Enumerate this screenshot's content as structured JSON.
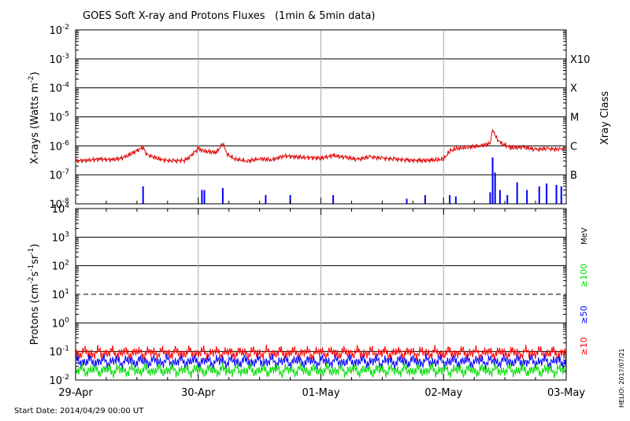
{
  "chart_data": {
    "title": "GOES Soft X-ray and Protons Fluxes   (1min & 5min data)",
    "start_date": "Start Date: 2014/04/29 00:00 UT",
    "credit": "HELIO: 2017/07/21",
    "x_axis": {
      "type": "time",
      "range": [
        "2014-04-29 00:00",
        "2014-05-03 00:00"
      ],
      "tick_labels": [
        "29-Apr",
        "30-Apr",
        "01-May",
        "02-May",
        "03-May"
      ],
      "grid": "vertical lines at day boundaries"
    },
    "xray_panel": {
      "type": "line",
      "y_scale": "log",
      "ylabel": "X-rays (Watts m",
      "ylabel_sup": "-2",
      "ylabel_close": ")",
      "ylim": [
        1e-08,
        0.01
      ],
      "tick_base": "10",
      "tick_exponents": [
        "-8",
        "-7",
        "-6",
        "-5",
        "-4",
        "-3",
        "-2"
      ],
      "right_axis_label": "Xray Class",
      "flare_classes": [
        {
          "label": "B",
          "value": 1e-07
        },
        {
          "label": "C",
          "value": 1e-06
        },
        {
          "label": "M",
          "value": 1e-05
        },
        {
          "label": "X",
          "value": 0.0001
        },
        {
          "label": "X10",
          "value": 0.001
        }
      ],
      "series": [
        {
          "channel": "long (1-8 Å)",
          "color": "#e00000",
          "points": [
            [
              0.0,
              3e-07
            ],
            [
              0.1,
              3.2e-07
            ],
            [
              0.2,
              3.5e-07
            ],
            [
              0.3,
              3.3e-07
            ],
            [
              0.4,
              4e-07
            ],
            [
              0.55,
              9e-07
            ],
            [
              0.58,
              5e-07
            ],
            [
              0.7,
              3.3e-07
            ],
            [
              0.8,
              3e-07
            ],
            [
              0.9,
              3.2e-07
            ],
            [
              1.0,
              8e-07
            ],
            [
              1.05,
              6.5e-07
            ],
            [
              1.15,
              6e-07
            ],
            [
              1.2,
              1.2e-06
            ],
            [
              1.24,
              5e-07
            ],
            [
              1.3,
              3.5e-07
            ],
            [
              1.4,
              3e-07
            ],
            [
              1.5,
              3.6e-07
            ],
            [
              1.6,
              3.3e-07
            ],
            [
              1.7,
              4.5e-07
            ],
            [
              1.85,
              4e-07
            ],
            [
              2.0,
              3.8e-07
            ],
            [
              2.1,
              4.6e-07
            ],
            [
              2.2,
              4e-07
            ],
            [
              2.3,
              3.4e-07
            ],
            [
              2.4,
              4.2e-07
            ],
            [
              2.5,
              3.7e-07
            ],
            [
              2.6,
              3.5e-07
            ],
            [
              2.7,
              3.2e-07
            ],
            [
              2.8,
              3.1e-07
            ],
            [
              2.9,
              3.2e-07
            ],
            [
              2.95,
              3.3e-07
            ],
            [
              3.0,
              3.5e-07
            ],
            [
              3.05,
              6.5e-07
            ],
            [
              3.1,
              8e-07
            ],
            [
              3.2,
              9e-07
            ],
            [
              3.3,
              1e-06
            ],
            [
              3.38,
              1.2e-06
            ],
            [
              3.4,
              3.5e-06
            ],
            [
              3.42,
              2.2e-06
            ],
            [
              3.46,
              1.3e-06
            ],
            [
              3.55,
              8.5e-07
            ],
            [
              3.65,
              9e-07
            ],
            [
              3.75,
              7.5e-07
            ],
            [
              3.85,
              8e-07
            ],
            [
              3.95,
              7.5e-07
            ],
            [
              4.0,
              8e-07
            ]
          ]
        },
        {
          "channel": "short (0.5-4 Å)",
          "color": "#0000ff",
          "points": [
            [
              0.55,
              4e-08
            ],
            [
              1.03,
              3e-08
            ],
            [
              1.05,
              3e-08
            ],
            [
              1.2,
              3.5e-08
            ],
            [
              1.55,
              2e-08
            ],
            [
              1.75,
              2e-08
            ],
            [
              2.1,
              2e-08
            ],
            [
              2.7,
              1.5e-08
            ],
            [
              2.85,
              2e-08
            ],
            [
              3.05,
              2e-08
            ],
            [
              3.1,
              1.8e-08
            ],
            [
              3.38,
              2.5e-08
            ],
            [
              3.4,
              4e-07
            ],
            [
              3.42,
              1.2e-07
            ],
            [
              3.46,
              3e-08
            ],
            [
              3.52,
              2e-08
            ],
            [
              3.6,
              5.5e-08
            ],
            [
              3.68,
              3e-08
            ],
            [
              3.78,
              4e-08
            ],
            [
              3.84,
              5e-08
            ],
            [
              3.92,
              4.5e-08
            ],
            [
              3.96,
              4e-08
            ]
          ]
        }
      ]
    },
    "proton_panel": {
      "type": "line",
      "y_scale": "log",
      "ylabel": "Protons (cm",
      "ylabel_sup": "-2",
      "ylabel_mid": "s",
      "ylabel_sup2": "-1",
      "ylabel_mid2": "sr",
      "ylabel_sup3": "-1",
      "ylabel_close": ")",
      "ylim": [
        0.01,
        10000
      ],
      "tick_labels": [
        {
          "base": "10",
          "exp": "-2"
        },
        {
          "base": "10",
          "exp": "-1"
        },
        {
          "base": "10",
          "exp": "0"
        },
        {
          "base": "10",
          "exp": "1"
        },
        {
          "base": "10",
          "exp": "2"
        },
        {
          "base": "10",
          "exp": "3"
        },
        {
          "base": "10",
          "exp": "4"
        }
      ],
      "threshold_line": {
        "value": 10,
        "style": "dashed"
      },
      "unit_label": "MeV",
      "series": [
        {
          "name": "≥10",
          "color": "#ff0000",
          "mean": 0.09
        },
        {
          "name": "≥50",
          "color": "#0000ff",
          "mean": 0.045
        },
        {
          "name": "≥100",
          "color": "#00dd00",
          "mean": 0.022
        }
      ]
    }
  }
}
